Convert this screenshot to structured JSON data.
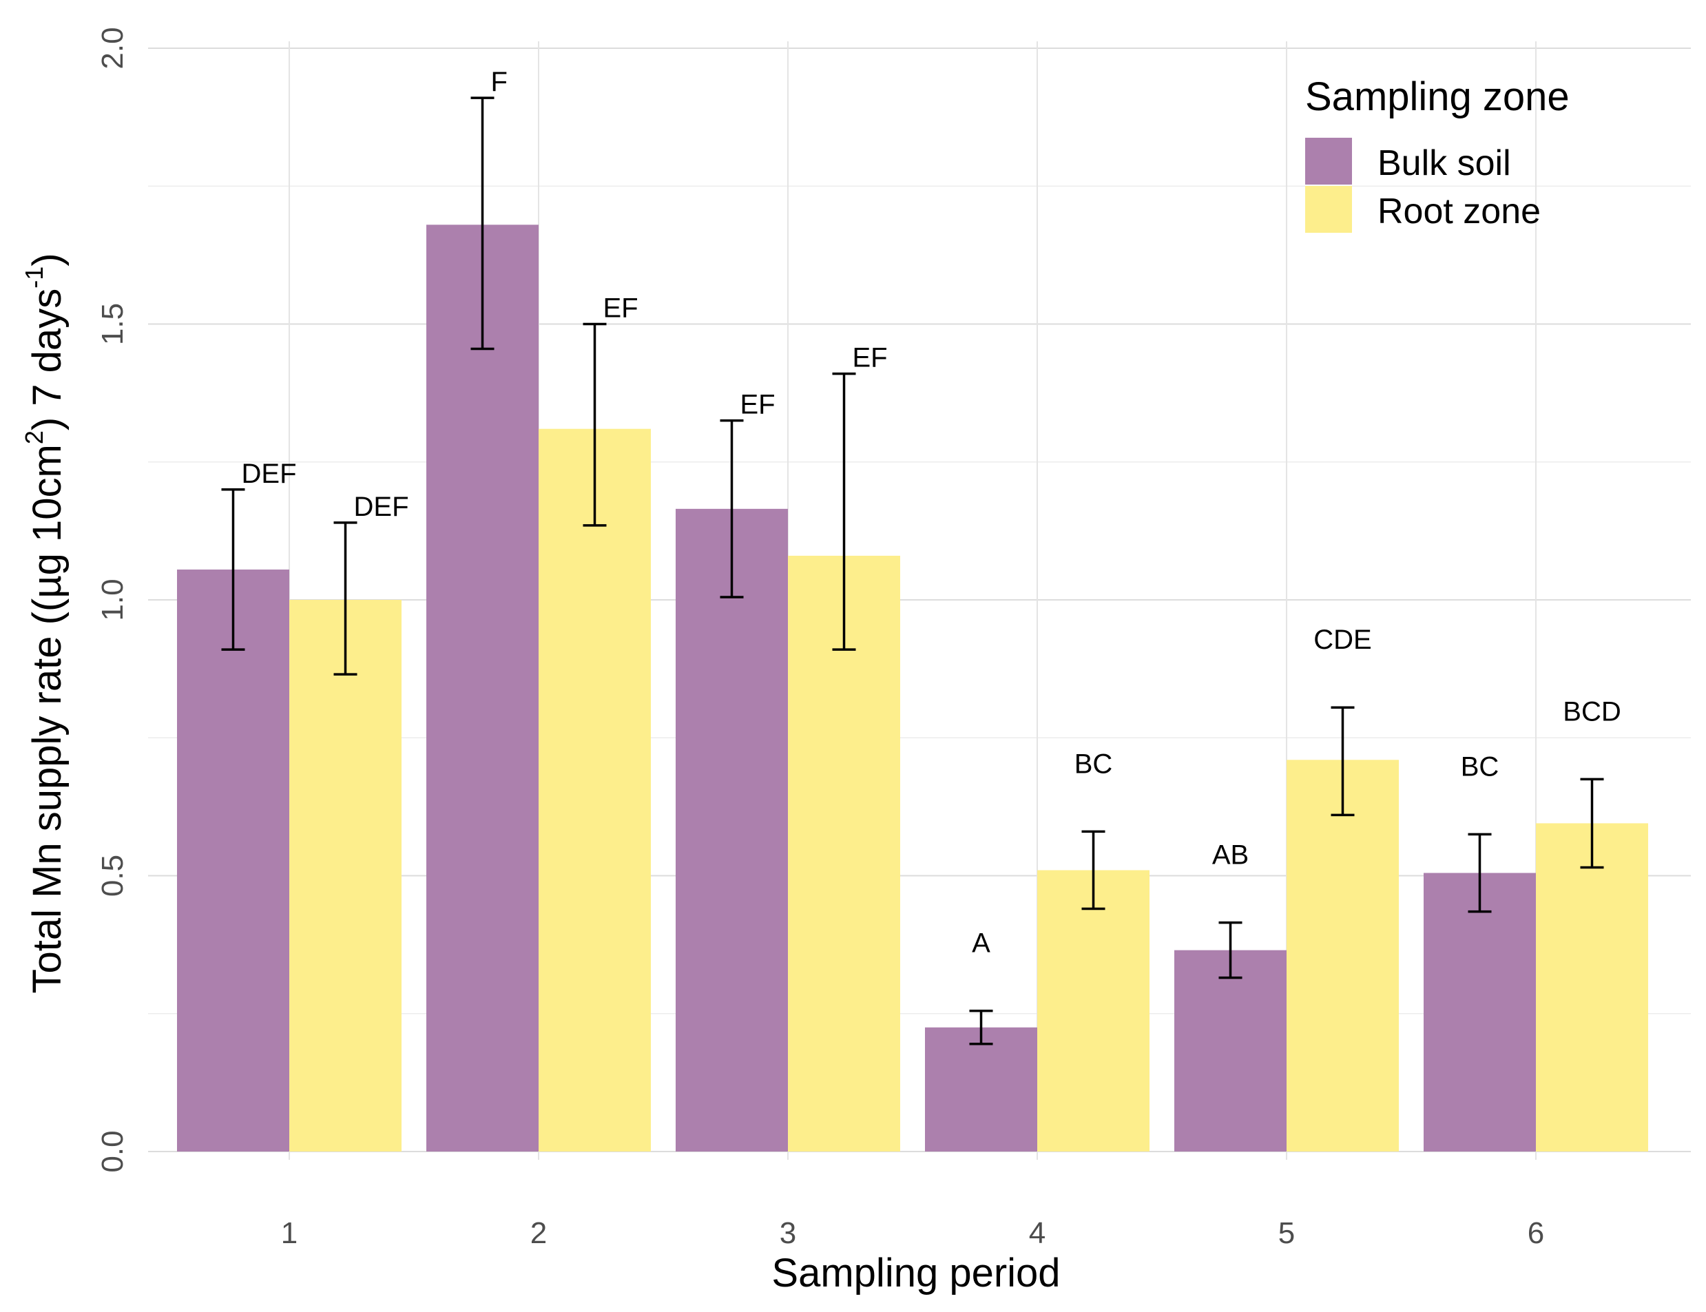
{
  "chart_data": {
    "type": "bar",
    "title": "",
    "xlabel": "Sampling period",
    "ylabel": {
      "main": "Total Mn supply rate ((µg 10cm",
      "sup1": "2",
      "mid": ") 7 days",
      "sup2": "-1",
      "end": ")"
    },
    "categories": [
      "1",
      "2",
      "3",
      "4",
      "5",
      "6"
    ],
    "ylim": [
      0,
      2.0
    ],
    "yticks": [
      "0.0",
      "0.5",
      "1.0",
      "1.5",
      "2.0"
    ],
    "grid": true,
    "legend": {
      "title": "Sampling zone",
      "position": "top-right"
    },
    "series": [
      {
        "name": "Bulk soil",
        "color": "#ac80ad",
        "values": [
          1.055,
          1.68,
          1.165,
          0.225,
          0.365,
          0.505
        ],
        "err_low": [
          0.91,
          1.455,
          1.005,
          0.195,
          0.315,
          0.435
        ],
        "err_high": [
          1.2,
          1.91,
          1.325,
          0.255,
          0.415,
          0.575
        ],
        "letters": [
          "DEF",
          "F",
          "EF",
          "A",
          "AB",
          "BC"
        ]
      },
      {
        "name": "Root zone",
        "color": "#fdee8c",
        "values": [
          1.0,
          1.31,
          1.08,
          0.51,
          0.71,
          0.595
        ],
        "err_low": [
          0.865,
          1.135,
          0.91,
          0.44,
          0.61,
          0.515
        ],
        "err_high": [
          1.14,
          1.5,
          1.41,
          0.58,
          0.805,
          0.675
        ],
        "letters": [
          "DEF",
          "EF",
          "EF",
          "BC",
          "CDE",
          "BCD"
        ]
      }
    ]
  }
}
